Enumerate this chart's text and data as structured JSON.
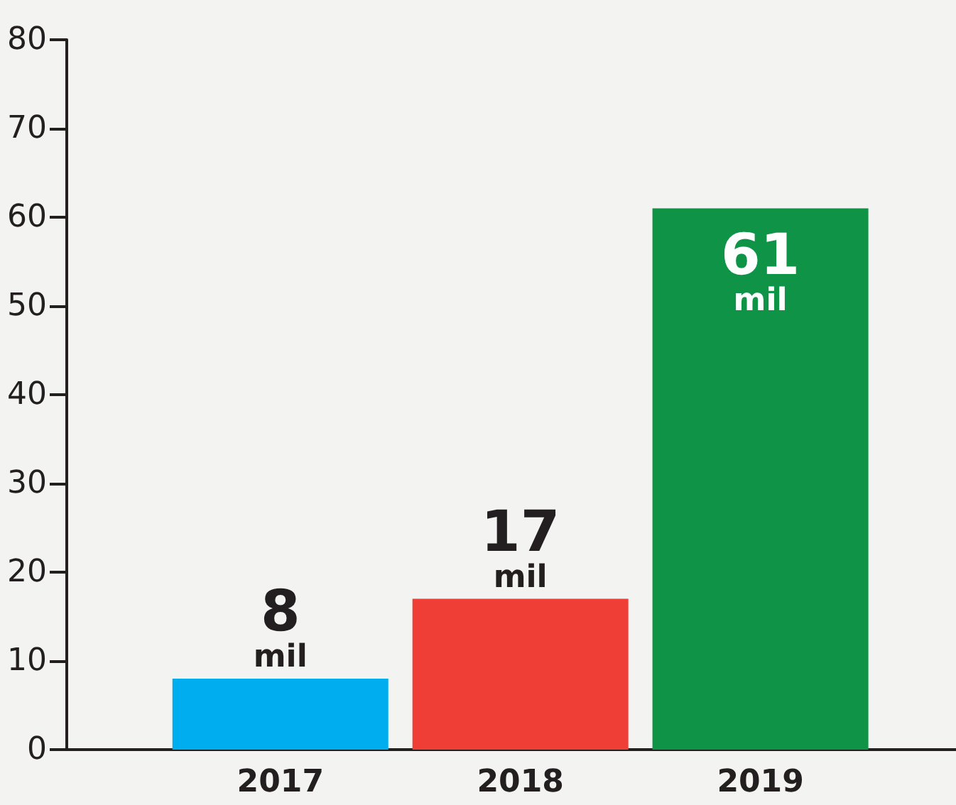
{
  "chart_data": {
    "type": "bar",
    "categories": [
      "2017",
      "2018",
      "2019"
    ],
    "values": [
      8,
      17,
      61
    ],
    "colors": [
      "#00aeef",
      "#ef3e36",
      "#0f9447"
    ],
    "value_labels": [
      "8 mil",
      "17 mil",
      "61 mil"
    ],
    "ylim": [
      0,
      80
    ],
    "yticks": [
      0,
      10,
      20,
      30,
      40,
      50,
      60,
      70,
      80
    ],
    "grid": false
  }
}
